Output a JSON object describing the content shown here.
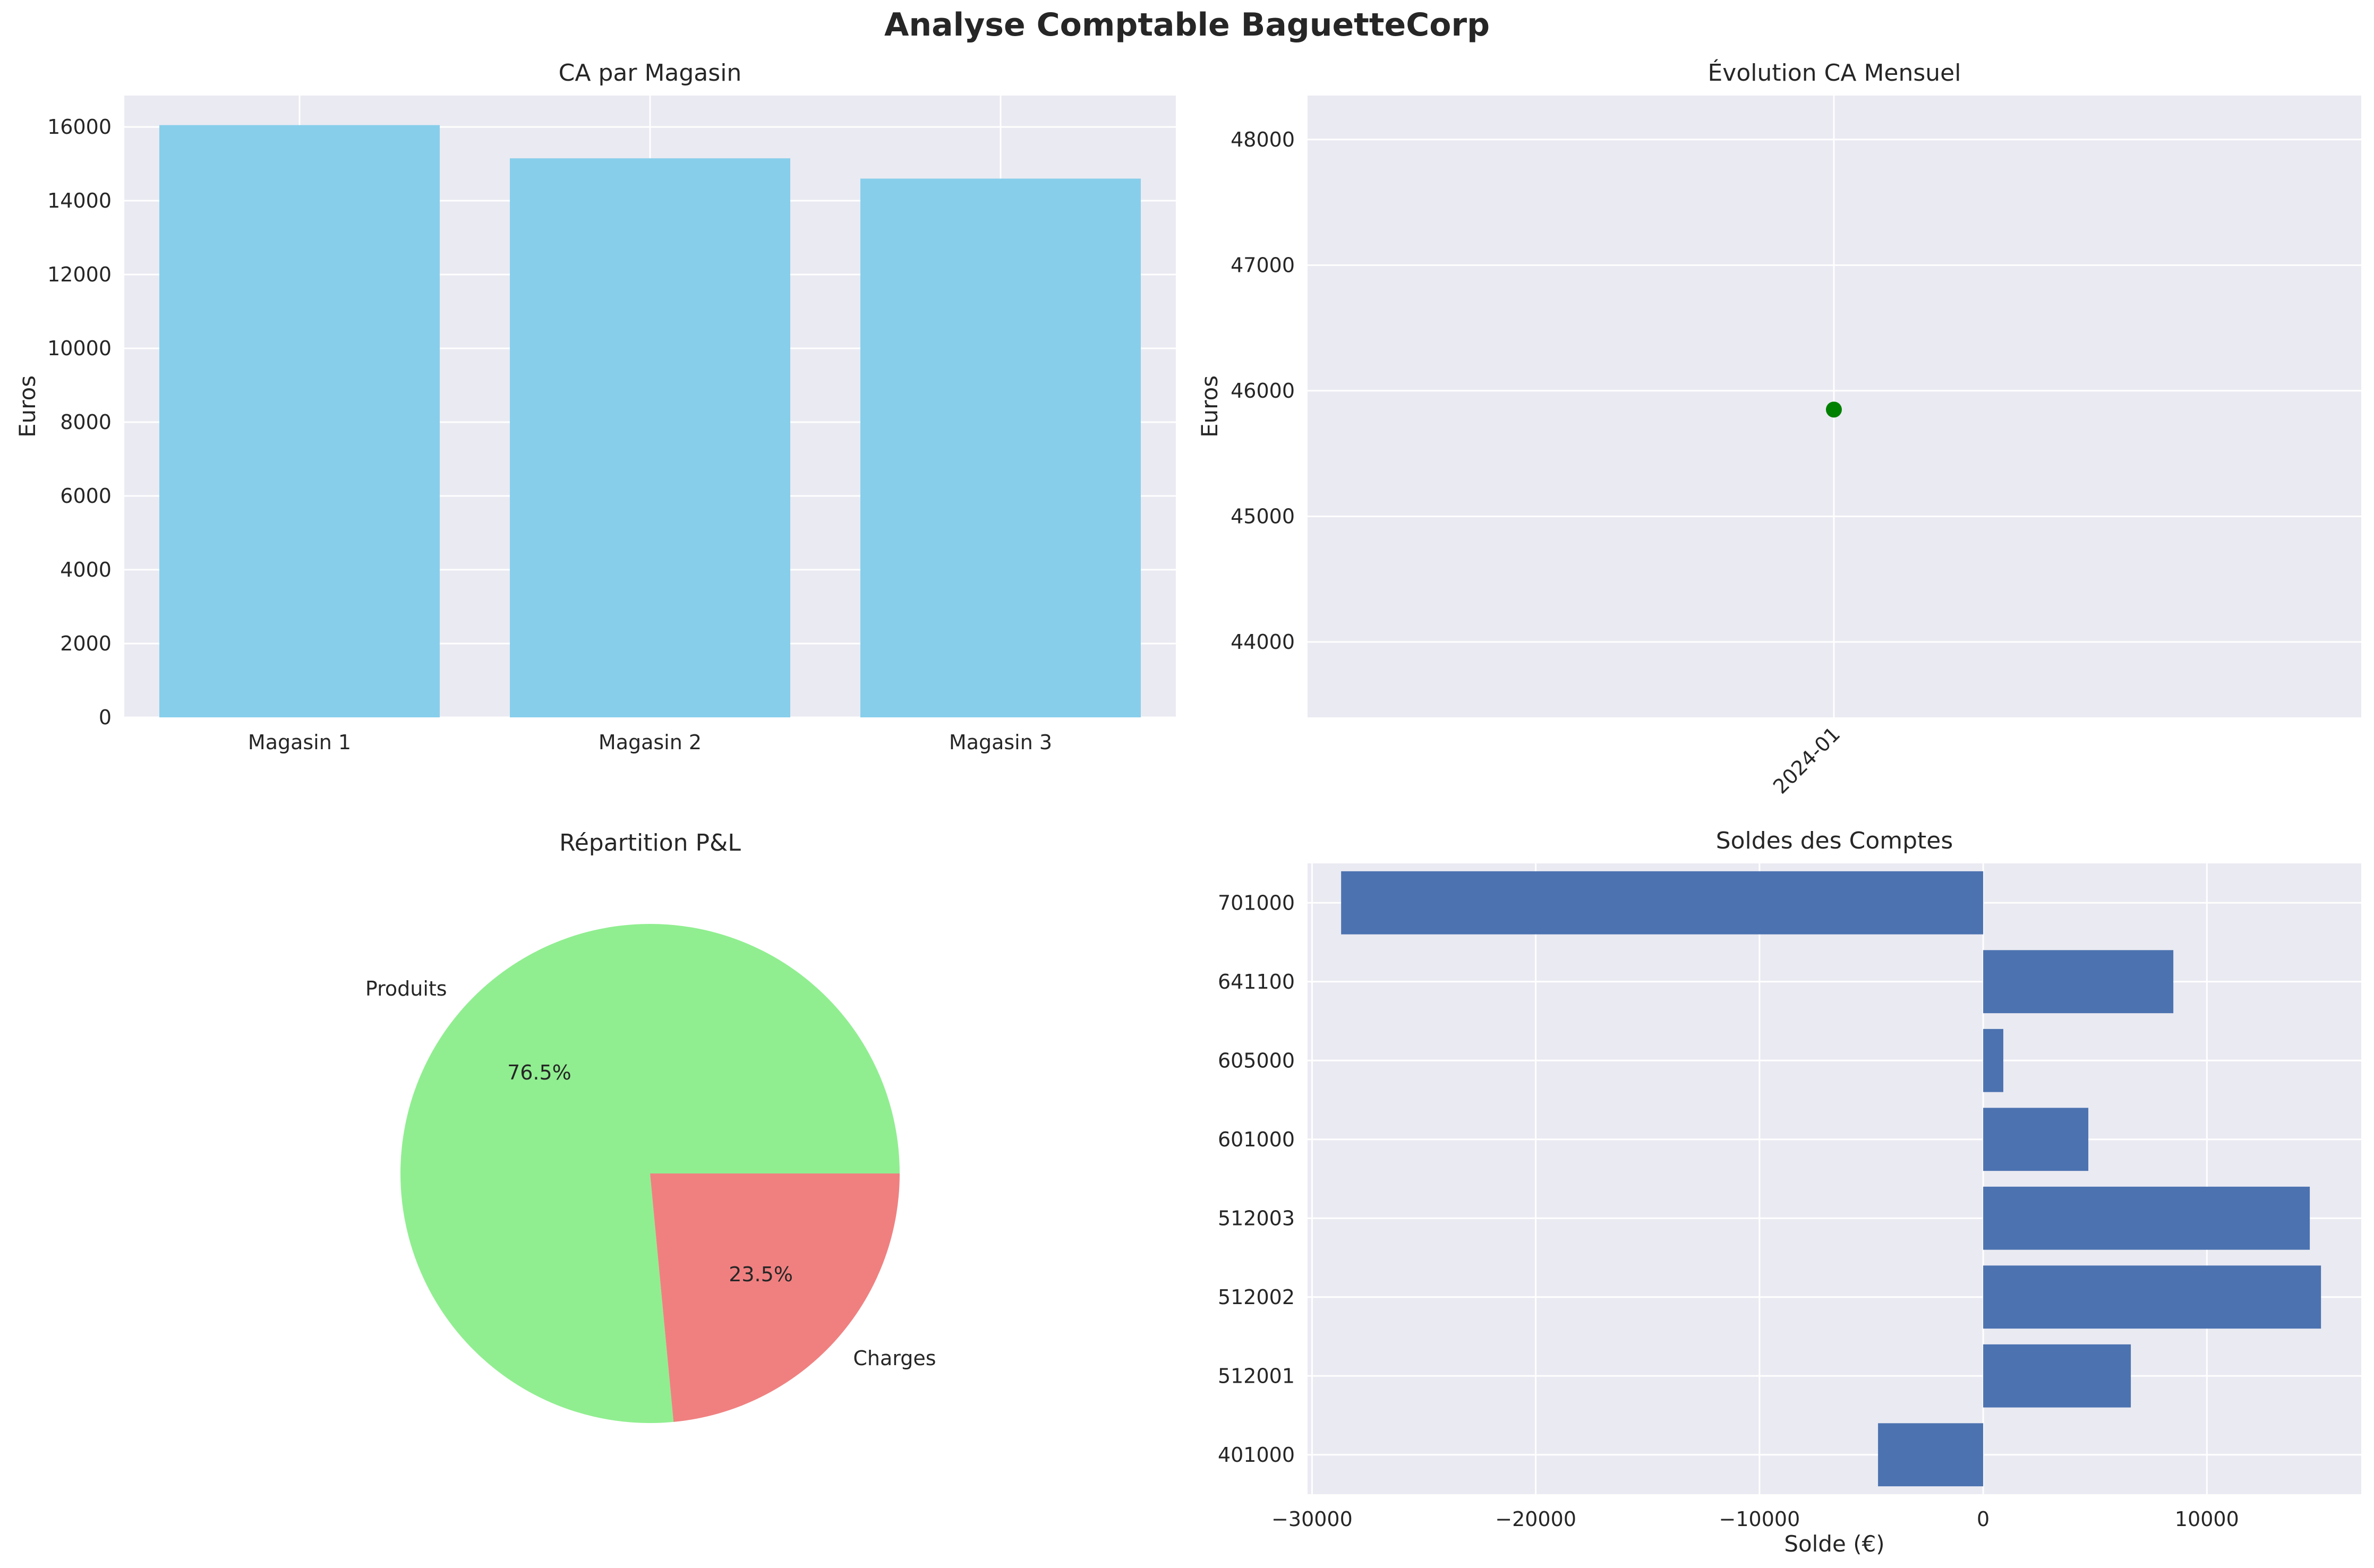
{
  "suptitle": "Analyse Comptable BaguetteCorp",
  "colors": {
    "background": "#eaeaf2",
    "grid": "#ffffff",
    "bar": "#87ceeb",
    "point": "#008000",
    "produits": "#90ee90",
    "charges": "#f08080",
    "soldes": "#4c72b0"
  },
  "chart_data": [
    {
      "type": "bar",
      "title": "CA par Magasin",
      "xlabel": "",
      "ylabel": "Euros",
      "categories": [
        "Magasin 1",
        "Magasin 2",
        "Magasin 3"
      ],
      "values": [
        16050,
        15150,
        14600
      ],
      "ylim": [
        0,
        16850
      ],
      "yticks": [
        0,
        2000,
        4000,
        6000,
        8000,
        10000,
        12000,
        14000,
        16000
      ],
      "grid": true
    },
    {
      "type": "line",
      "title": "Évolution CA Mensuel",
      "xlabel": "",
      "ylabel": "Euros",
      "x": [
        "2024-01"
      ],
      "values": [
        45850
      ],
      "ylim": [
        43400,
        48350
      ],
      "yticks": [
        44000,
        45000,
        46000,
        47000,
        48000
      ],
      "grid": true
    },
    {
      "type": "pie",
      "title": "Répartition P&L",
      "labels": [
        "Produits",
        "Charges"
      ],
      "values": [
        76.5,
        23.5
      ],
      "autopct": [
        "76.5%",
        "23.5%"
      ]
    },
    {
      "type": "bar",
      "orientation": "horizontal",
      "title": "Soldes des Comptes",
      "xlabel": "Solde (€)",
      "ylabel": "",
      "categories": [
        "701000",
        "641100",
        "605000",
        "601000",
        "512003",
        "512002",
        "512001",
        "401000"
      ],
      "values": [
        -28700,
        8500,
        900,
        4700,
        14600,
        15100,
        6600,
        -4700
      ],
      "xlim": [
        -30200,
        16900
      ],
      "xticks": [
        -30000,
        -20000,
        -10000,
        0,
        10000
      ],
      "xticklabels": [
        "−30000",
        "−20000",
        "−10000",
        "0",
        "10000"
      ],
      "grid": true
    }
  ]
}
